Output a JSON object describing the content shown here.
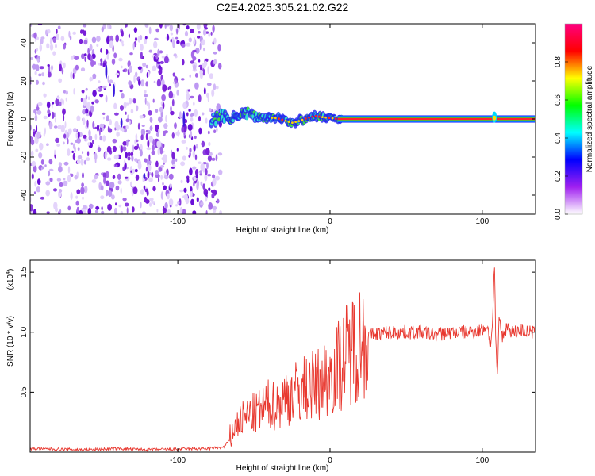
{
  "chart_data": [
    {
      "type": "heatmap",
      "title": "C2E4.2025.305.21.02.G22",
      "xlabel": "Height of straight line (km)",
      "ylabel": "Frequency (Hz)",
      "xlim": [
        -197,
        135
      ],
      "ylim": [
        -50,
        50
      ],
      "xticks": [
        -100,
        0,
        100
      ],
      "xtick_labels": [
        "-100",
        "0",
        "100"
      ],
      "yticks": [
        -40,
        -20,
        0,
        20,
        40
      ],
      "ytick_labels": [
        "-40",
        "-20",
        "0",
        "20",
        "40"
      ],
      "colorbar": {
        "label": "Normalized spectral amplitude",
        "range": [
          0,
          1
        ],
        "ticks": [
          0.0,
          0.2,
          0.4,
          0.6,
          0.8
        ],
        "tick_labels": [
          "0.0",
          "0.2",
          "0.4",
          "0.6",
          "0.8"
        ],
        "colormap": "rainbow",
        "stops": [
          "#ffffff",
          "#a020f0",
          "#0000ff",
          "#00ffff",
          "#00ff00",
          "#ffff00",
          "#ff0000",
          "#ff0080"
        ]
      },
      "noise_region_x": [
        -197,
        -75
      ],
      "signal_track": {
        "x": [
          -75,
          -65,
          -55,
          -45,
          -35,
          -25,
          -20,
          -15,
          -10,
          -5,
          0,
          5,
          20,
          40,
          60,
          80,
          100,
          105,
          108,
          111,
          120,
          135
        ],
        "y": [
          2,
          1,
          3,
          1,
          0.5,
          -2,
          -1,
          0.5,
          1.5,
          1,
          0.5,
          0,
          0,
          0,
          0,
          0,
          0,
          0,
          1,
          0,
          0,
          0
        ]
      }
    },
    {
      "type": "line",
      "xlabel": "Height of straight line (km)",
      "ylabel": "SNR (10 * v/v)",
      "y_scale_label": "(x10",
      "y_scale_exp": "4",
      "y_scale_close": ")",
      "xlim": [
        -197,
        135
      ],
      "ylim": [
        0,
        1.6
      ],
      "xticks": [
        -100,
        0,
        100
      ],
      "xtick_labels": [
        "-100",
        "0",
        "100"
      ],
      "yticks": [
        0.5,
        1.0,
        1.5
      ],
      "ytick_labels": [
        "0.5",
        "1.0",
        "1.5"
      ],
      "color": "#e8382f",
      "series": [
        {
          "name": "SNR",
          "x": [
            -197,
            -180,
            -160,
            -140,
            -120,
            -100,
            -80,
            -70,
            -66,
            -63,
            -60,
            -55,
            -50,
            -45,
            -40,
            -35,
            -30,
            -25,
            -20,
            -15,
            -10,
            -5,
            0,
            5,
            10,
            15,
            20,
            25,
            30,
            40,
            50,
            60,
            70,
            80,
            90,
            100,
            103,
            106,
            107,
            108,
            109,
            110,
            111,
            113,
            116,
            120,
            125,
            130,
            135
          ],
          "y": [
            0.03,
            0.025,
            0.02,
            0.03,
            0.02,
            0.025,
            0.03,
            0.04,
            0.1,
            0.2,
            0.25,
            0.3,
            0.32,
            0.35,
            0.4,
            0.38,
            0.45,
            0.5,
            0.5,
            0.55,
            0.55,
            0.6,
            0.65,
            0.72,
            0.8,
            0.88,
            0.93,
            0.97,
            0.99,
            1.0,
            1.0,
            1.0,
            0.98,
            1.0,
            1.0,
            1.02,
            1.06,
            0.9,
            1.2,
            1.58,
            0.85,
            0.57,
            1.15,
            0.95,
            1.05,
            1.0,
            1.02,
            1.0,
            1.0
          ]
        }
      ]
    }
  ]
}
